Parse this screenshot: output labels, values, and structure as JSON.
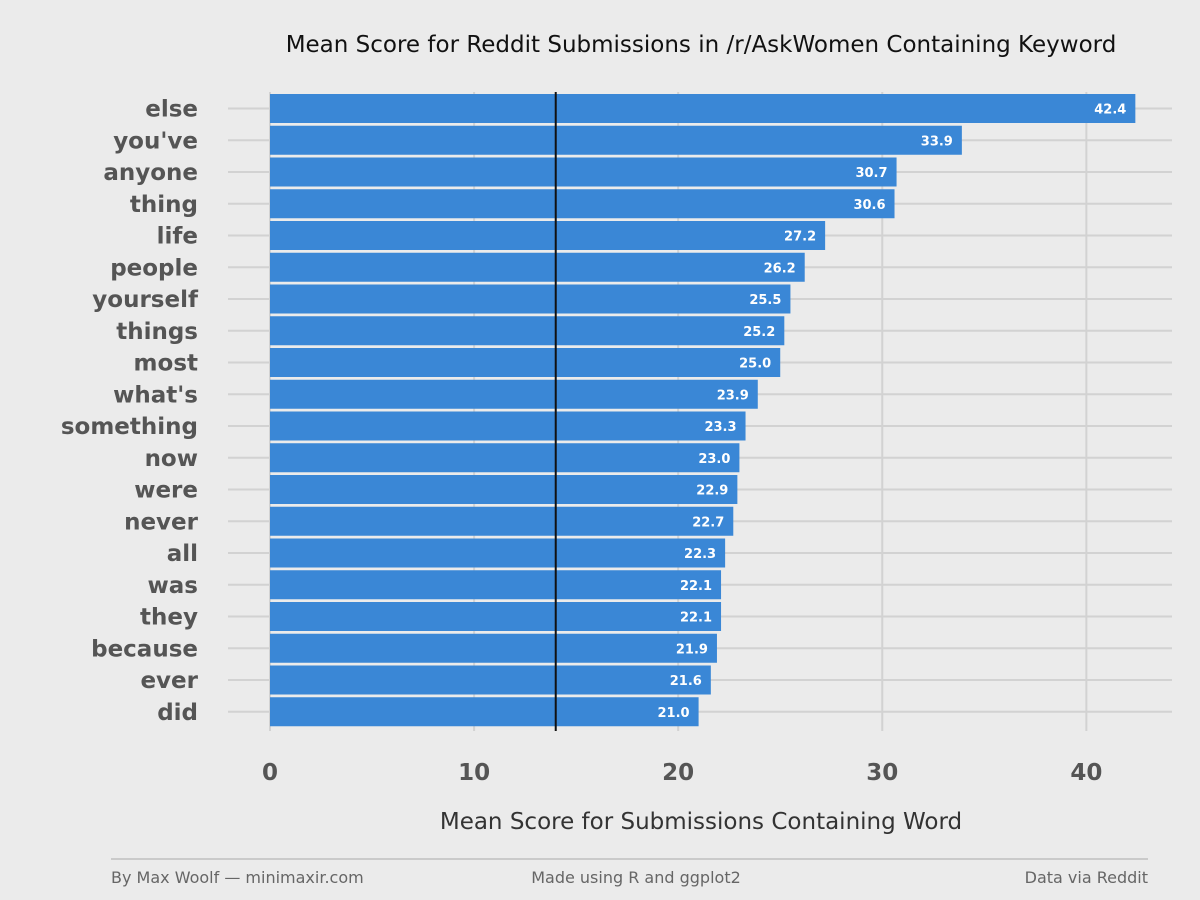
{
  "chart_data": {
    "type": "bar",
    "orientation": "horizontal",
    "title": "Mean Score for Reddit Submissions in /r/AskWomen Containing Keyword",
    "xlabel": "Mean Score for Submissions Containing Word",
    "ylabel": "",
    "categories": [
      "else",
      "you've",
      "anyone",
      "thing",
      "life",
      "people",
      "yourself",
      "things",
      "most",
      "what's",
      "something",
      "now",
      "were",
      "never",
      "all",
      "was",
      "they",
      "because",
      "ever",
      "did"
    ],
    "values": [
      42.4,
      33.9,
      30.7,
      30.6,
      27.2,
      26.2,
      25.5,
      25.2,
      25.0,
      23.9,
      23.3,
      23.0,
      22.9,
      22.7,
      22.3,
      22.1,
      22.1,
      21.9,
      21.6,
      21.0
    ],
    "value_labels": [
      "42.4",
      "33.9",
      "30.7",
      "30.6",
      "27.2",
      "26.2",
      "25.5",
      "25.2",
      "25.0",
      "23.9",
      "23.3",
      "23.0",
      "22.9",
      "22.7",
      "22.3",
      "22.1",
      "22.1",
      "21.9",
      "21.6",
      "21.0"
    ],
    "xlim": [
      0,
      44
    ],
    "xticks": [
      0,
      10,
      20,
      30,
      40
    ],
    "reference_line": 14,
    "grid": true,
    "bar_color": "#3a87d6",
    "reference_line_color": "#111111"
  },
  "footer": {
    "left": "By Max Woolf — minimaxir.com",
    "center": "Made using R and ggplot2",
    "right": "Data via Reddit"
  }
}
